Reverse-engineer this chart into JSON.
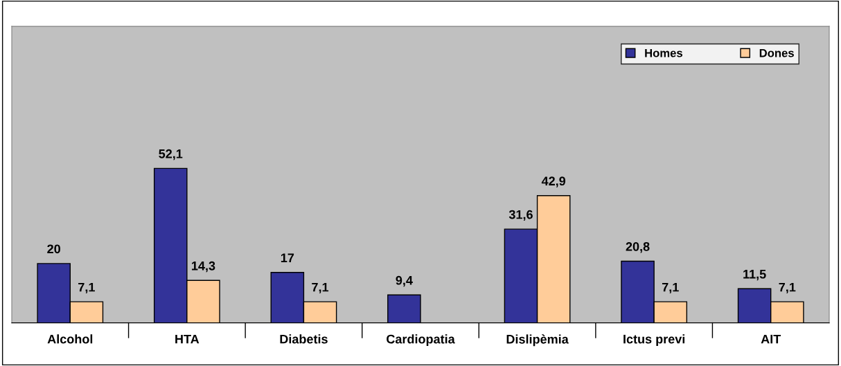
{
  "chart_data": {
    "type": "bar",
    "categories": [
      "Alcohol",
      "HTA",
      "Diabetis",
      "Cardiopatia",
      "Dislipèmia",
      "Ictus previ",
      "AIT"
    ],
    "series": [
      {
        "name": "Homes",
        "color": "#333399",
        "values": [
          20,
          52.1,
          17,
          9.4,
          31.6,
          20.8,
          11.5
        ],
        "value_labels": [
          "20",
          "52,1",
          "17",
          "9,4",
          "31,6",
          "20,8",
          "11,5"
        ]
      },
      {
        "name": "Dones",
        "color": "#ffcc99",
        "values": [
          7.1,
          14.3,
          7.1,
          null,
          42.9,
          7.1,
          7.1
        ],
        "value_labels": [
          "7,1",
          "14,3",
          "7,1",
          null,
          "42,9",
          "7,1",
          "7,1"
        ]
      }
    ],
    "ylim": [
      0,
      100
    ],
    "tick_labels": "x",
    "grid": false,
    "legend": "top right"
  }
}
